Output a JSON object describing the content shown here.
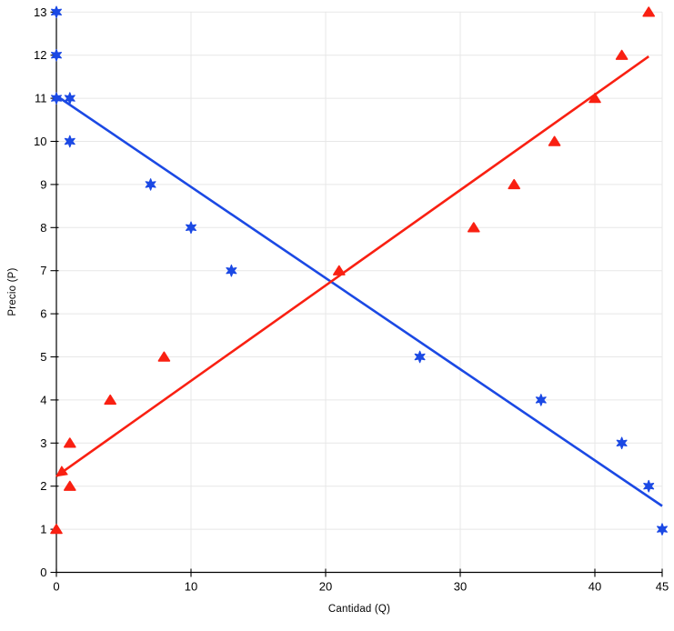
{
  "chart_data": {
    "type": "scatter",
    "title": "",
    "xlabel": "Cantidad (Q)",
    "ylabel": "Precio (P)",
    "xlim": [
      0,
      45
    ],
    "ylim": [
      0,
      13
    ],
    "x_ticks": [
      0,
      10,
      20,
      30,
      40,
      45
    ],
    "y_ticks": [
      0,
      1,
      2,
      3,
      4,
      5,
      6,
      7,
      8,
      9,
      10,
      11,
      12,
      13
    ],
    "grid": true,
    "grid_color": "#e7e7e7",
    "axis_color": "#000000",
    "legend_position": "none",
    "series": [
      {
        "id": "demand-blue-stars",
        "marker": "star6",
        "color": "#1b49e4",
        "points": [
          [
            0,
            13
          ],
          [
            0,
            12
          ],
          [
            0,
            11
          ],
          [
            1,
            11
          ],
          [
            1,
            10
          ],
          [
            7,
            9
          ],
          [
            10,
            8
          ],
          [
            13,
            7
          ],
          [
            27,
            5
          ],
          [
            36,
            4
          ],
          [
            42,
            3
          ],
          [
            44,
            2
          ],
          [
            45,
            1
          ]
        ],
        "trendline": {
          "from": [
            0,
            11.06
          ],
          "to": [
            45,
            1.54
          ],
          "arrow_at_start": false
        }
      },
      {
        "id": "supply-red-triangles",
        "marker": "triangle",
        "color": "#f92012",
        "points": [
          [
            0,
            1
          ],
          [
            1,
            2
          ],
          [
            1,
            3
          ],
          [
            4,
            4
          ],
          [
            8,
            5
          ],
          [
            21,
            7
          ],
          [
            31,
            8
          ],
          [
            34,
            9
          ],
          [
            37,
            10
          ],
          [
            40,
            11
          ],
          [
            42,
            12
          ],
          [
            44,
            13
          ]
        ],
        "trendline": {
          "from": [
            0,
            2.23
          ],
          "to": [
            44,
            11.97
          ],
          "arrow_at_start": true
        }
      }
    ]
  }
}
